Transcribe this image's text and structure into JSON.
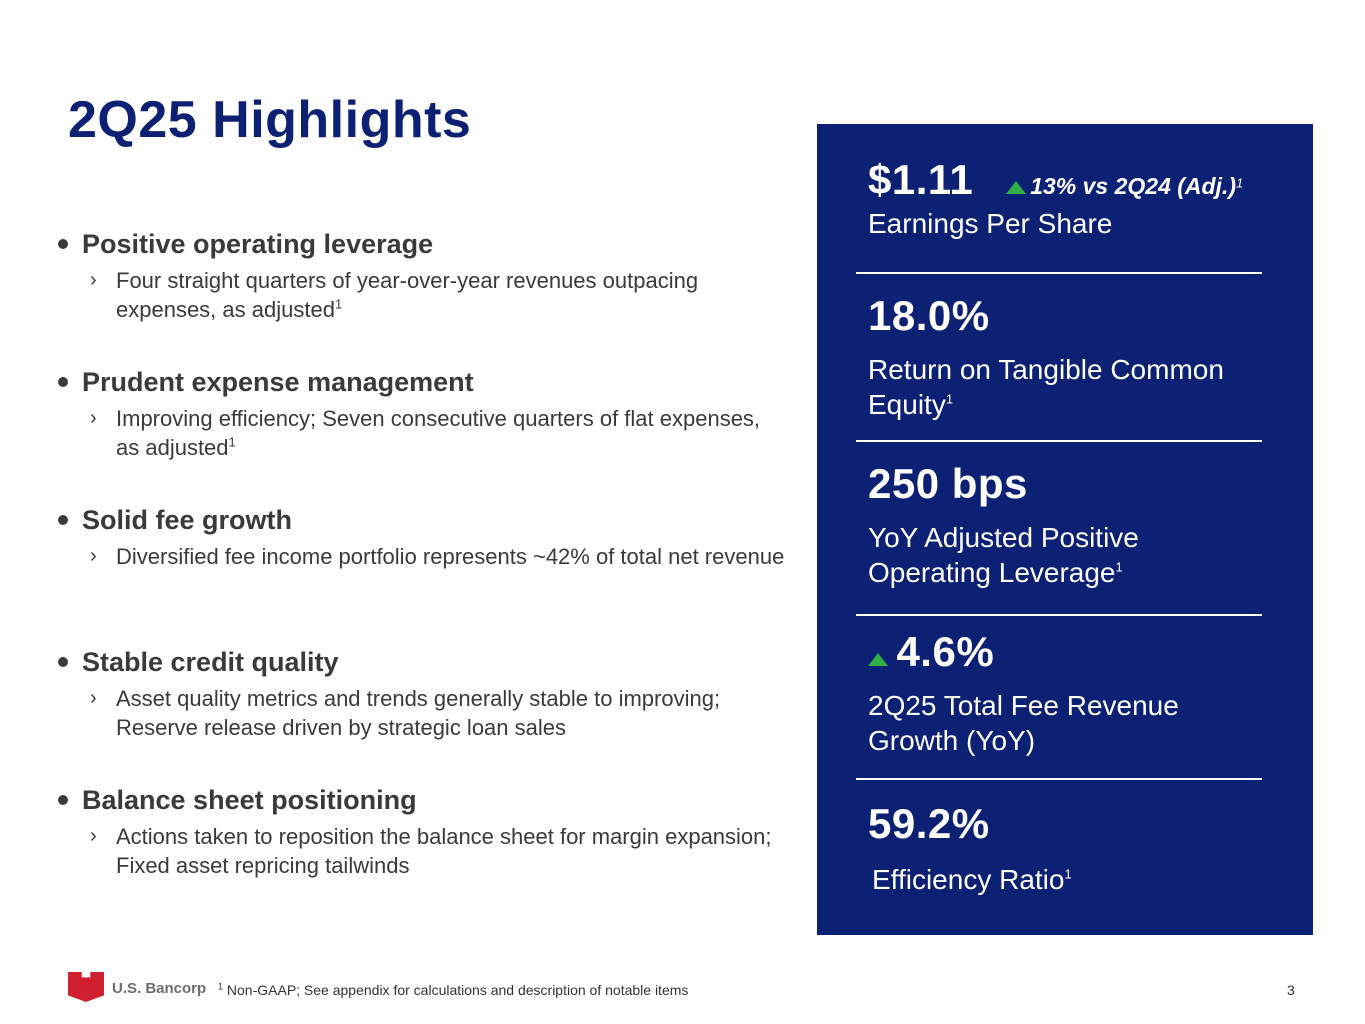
{
  "title": "2Q25 Highlights",
  "bullets": [
    {
      "heading": "Positive operating leverage",
      "detail": "Four straight quarters of year-over-year revenues outpacing expenses, as adjusted",
      "footnote_mark": "1"
    },
    {
      "heading": "Prudent expense management",
      "detail": "Improving efficiency; Seven consecutive quarters of flat expenses, as adjusted",
      "footnote_mark": "1"
    },
    {
      "heading": "Solid fee growth",
      "detail": "Diversified fee income portfolio represents ~42% of total net revenue",
      "footnote_mark": ""
    },
    {
      "heading": "Stable credit quality",
      "detail": "Asset quality metrics and trends generally stable to improving; Reserve release driven by strategic loan sales",
      "footnote_mark": ""
    },
    {
      "heading": "Balance sheet positioning",
      "detail": "Actions taken to reposition the balance sheet for margin expansion; Fixed asset repricing tailwinds",
      "footnote_mark": ""
    }
  ],
  "metrics": {
    "eps": {
      "value": "$1.11",
      "delta": "13% vs 2Q24 (Adj.)",
      "delta_mark": "1",
      "label": "Earnings Per Share"
    },
    "rotce": {
      "value": "18.0%",
      "label_line1": "Return on Tangible Common",
      "label_line2": "Equity",
      "mark": "1"
    },
    "leverage": {
      "value": "250 bps",
      "label_line1": "YoY Adjusted Positive",
      "label_line2": "Operating Leverage",
      "mark": "1"
    },
    "fee_growth": {
      "value": "4.6%",
      "label_line1": "2Q25 Total Fee Revenue",
      "label_line2": "Growth (YoY)"
    },
    "efficiency": {
      "value": "59.2%",
      "label": "Efficiency Ratio",
      "mark": "1"
    }
  },
  "colors": {
    "brand_navy": "#0c2074",
    "up_green": "#2fae4a",
    "logo_red": "#d0202f"
  },
  "icons": {
    "up_arrow": "green-up-triangle",
    "logo": "us-bancorp-shield"
  },
  "footer": {
    "brand": "U.S. Bancorp",
    "footnote_mark": "1",
    "footnote": "Non-GAAP; See appendix for calculations and description of notable items",
    "page_number": "3"
  }
}
